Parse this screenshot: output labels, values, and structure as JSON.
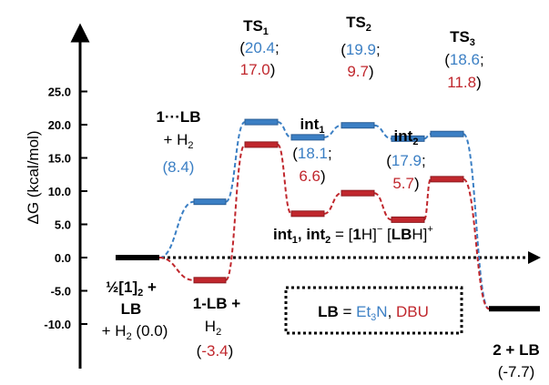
{
  "chart_data": {
    "type": "line",
    "ylabel": "ΔG (kcal/mol)",
    "ylim": [
      -10.0,
      25.0
    ],
    "yticks": [
      "25.0",
      "20.0",
      "15.0",
      "10.0",
      "5.0",
      "0.0",
      "-5.0",
      "-10.0"
    ],
    "grid": false,
    "colors": {
      "et3n": "#3b7fc4",
      "dbu": "#c0272d",
      "common": "#000000"
    },
    "species": [
      "½[1]2 + LB + H2",
      "1···LB + H2 / 1-LB + H2",
      "TS1",
      "int1",
      "TS2",
      "int2",
      "TS3",
      "2 + LB"
    ],
    "series": [
      {
        "name": "Et3N",
        "values": [
          0.0,
          8.4,
          20.4,
          18.1,
          19.9,
          17.9,
          18.6,
          -7.7
        ]
      },
      {
        "name": "DBU",
        "values": [
          0.0,
          -3.4,
          17.0,
          6.6,
          9.7,
          5.7,
          11.8,
          -7.7
        ]
      }
    ],
    "labels": {
      "start": {
        "l1a": "½",
        "l1b": "[",
        "l1c": "1",
        "l1d": "]",
        "l1sub": "2",
        "l1e": " +",
        "l2": "LB",
        "l3": "+ H",
        "l3sub": "2",
        "l3val": " (0.0)"
      },
      "lb_complex": {
        "l1": "1···LB",
        "l2": "+ H",
        "l2sub": "2",
        "value": "(8.4)"
      },
      "lb_adduct": {
        "l1": "1-LB +",
        "l2": "H",
        "l2sub": "2",
        "open": "(",
        "value": "-3.4",
        "close": ")"
      },
      "ts1": {
        "name": "TS",
        "sub": "1",
        "blue": "20.4",
        "red": "17.0"
      },
      "int1": {
        "name": "int",
        "sub": "1",
        "blue": "18.1",
        "red": "6.6"
      },
      "ts2": {
        "name": "TS",
        "sub": "2",
        "blue": "19.9",
        "red": "9.7"
      },
      "int2": {
        "name": "int",
        "sub": "2",
        "blue": "17.9",
        "red": "5.7"
      },
      "ts3": {
        "name": "TS",
        "sub": "3",
        "blue": "18.6",
        "red": "11.8"
      },
      "product": {
        "l1": "2 + LB",
        "l2": "(-7.7)"
      }
    },
    "annotations": {
      "ints": {
        "a": "int",
        "asub": "1",
        "b": ", int",
        "bsub": "2",
        "c": " = [",
        "d": "1",
        "e": "H]",
        "esup": "−",
        "f": " [",
        "g": "LB",
        "h": "H]",
        "hsup": "+"
      },
      "legend": {
        "lb": "LB",
        "eq": " = ",
        "et": "Et",
        "etsub": "3",
        "n": "N",
        "comma": ", ",
        "dbu": "DBU"
      }
    }
  }
}
